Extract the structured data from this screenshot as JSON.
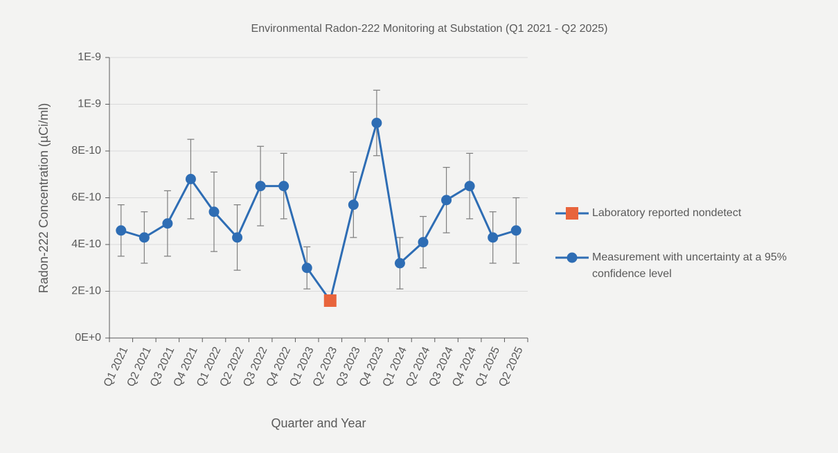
{
  "chart_data": {
    "type": "line",
    "title": "Environmental Radon-222 Monitoring at Substation (Q1 2021 - Q2 2025)",
    "x_label": "Quarter and Year",
    "y_label": "Radon-222 Concentration (µCi/ml)",
    "categories": [
      "Q1 2021",
      "Q2 2021",
      "Q3 2021",
      "Q4 2021",
      "Q1 2022",
      "Q2 2022",
      "Q3 2022",
      "Q4 2022",
      "Q1 2023",
      "Q2 2023",
      "Q3 2023",
      "Q4 2023",
      "Q1 2024",
      "Q2 2024",
      "Q3 2024",
      "Q4 2024",
      "Q1 2025",
      "Q2 2025"
    ],
    "series": [
      {
        "name": "Laboratory reported nondetect",
        "color": "#e8643c",
        "marker": "square",
        "values": [
          null,
          null,
          null,
          null,
          null,
          null,
          null,
          null,
          null,
          1.6e-10,
          null,
          null,
          null,
          null,
          null,
          null,
          null,
          null
        ]
      },
      {
        "name": "Measurement with uncertainty at a 95% confidence level",
        "color": "#2e6db4",
        "marker": "circle",
        "values": [
          4.6e-10,
          4.3e-10,
          4.9e-10,
          6.8e-10,
          5.4e-10,
          4.3e-10,
          6.5e-10,
          6.5e-10,
          3e-10,
          null,
          5.7e-10,
          9.2e-10,
          3.2e-10,
          4.1e-10,
          5.9e-10,
          6.5e-10,
          4.3e-10,
          4.6e-10
        ],
        "errors": [
          1.1e-10,
          1.1e-10,
          1.4e-10,
          1.7e-10,
          1.7e-10,
          1.4e-10,
          1.7e-10,
          1.4e-10,
          9e-11,
          null,
          1.4e-10,
          1.4e-10,
          1.1e-10,
          1.1e-10,
          1.4e-10,
          1.4e-10,
          1.1e-10,
          1.4e-10
        ]
      }
    ],
    "ylim": [
      0,
      1.2e-09
    ],
    "yticks": [
      {
        "value": 0,
        "label": "0E+0"
      },
      {
        "value": 2e-10,
        "label": "2E-10"
      },
      {
        "value": 4e-10,
        "label": "4E-10"
      },
      {
        "value": 6e-10,
        "label": "6E-10"
      },
      {
        "value": 8e-10,
        "label": "8E-10"
      },
      {
        "value": 1e-09,
        "label": "1E-9"
      },
      {
        "value": 1.2e-09,
        "label": "1E-9"
      }
    ],
    "grid": true
  }
}
